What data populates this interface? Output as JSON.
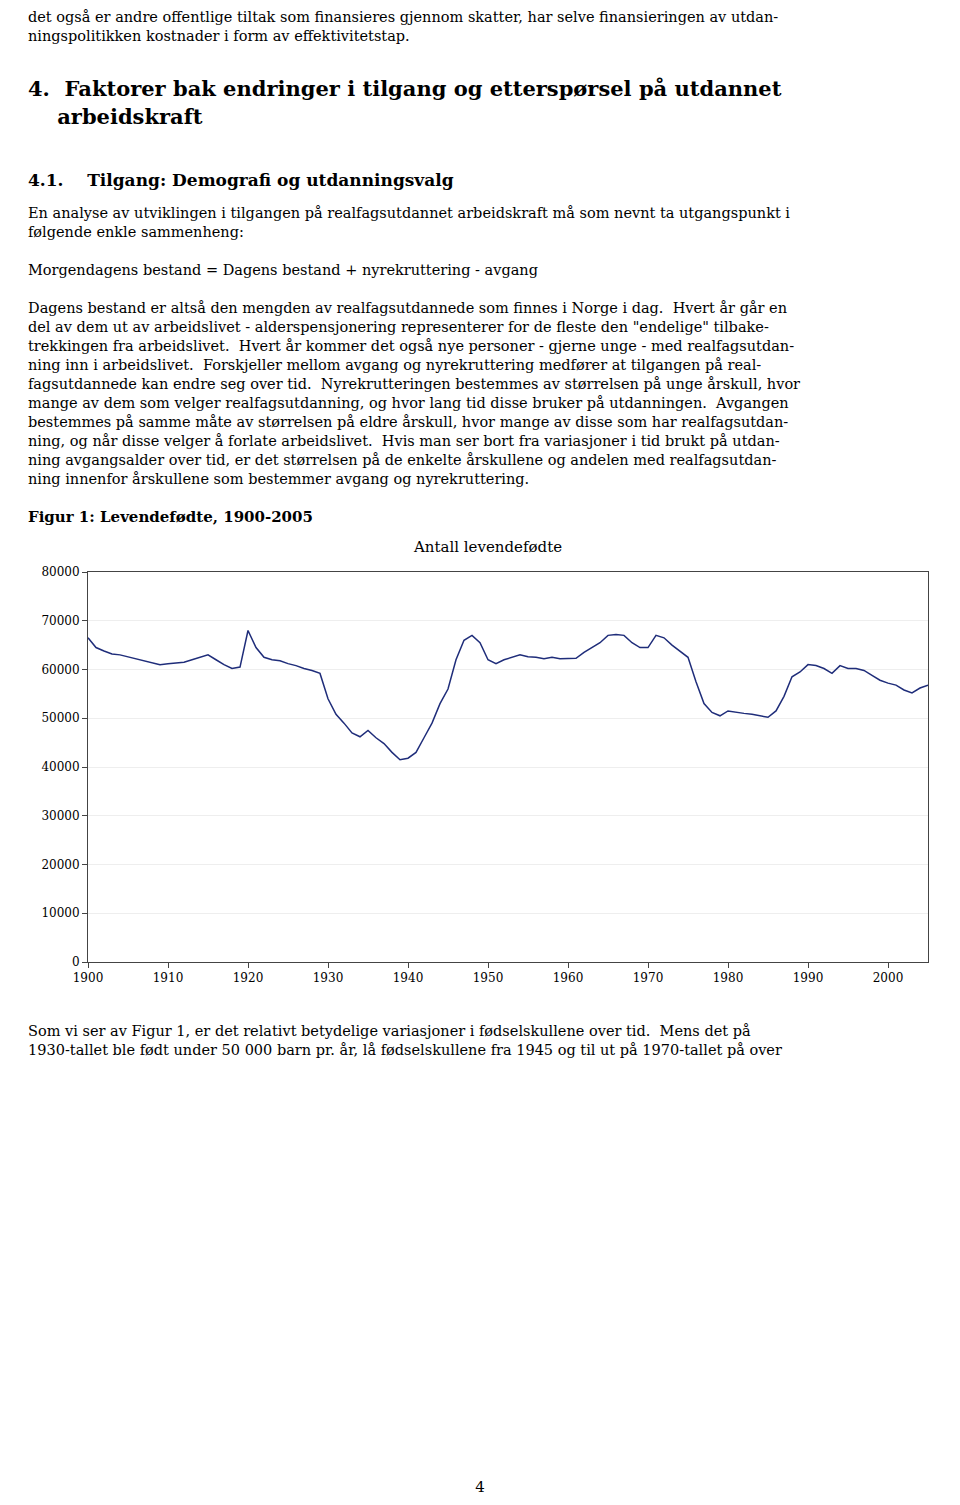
{
  "text_above": [
    {
      "lines": [
        "det også er andre offentlige tiltak som finansieres gjennom skatter, har selve finansieringen av utdan-",
        "ningspolitikken kostnader i form av effektivitetstap."
      ]
    },
    {
      "heading": [
        "4.  Faktorer bak endringer i tilgang og etterspørsel på utdannet",
        "    arbeidskraft"
      ]
    },
    {
      "subheading": [
        "4.1.    Tilgang: Demografi og utdanningsvalg"
      ]
    },
    {
      "lines": [
        "En analyse av utviklingen i tilgangen på realfagsutdannet arbeidskraft må som nevnt ta utgangspunkt i",
        "følgende enkle sammenheng:"
      ]
    },
    {
      "lines": [
        "Morgendagens bestand = Dagens bestand + nyrekruttering - avgang"
      ]
    },
    {
      "lines": [
        "Dagens bestand er altså den mengden av realfagsutdannede som finnes i Norge i dag.  Hvert år går en",
        "del av dem ut av arbeidslivet - alderspensjonering representerer for de fleste den \"endelige\" tilbake-",
        "trekkingen fra arbeidslivet.  Hvert år kommer det også nye personer - gjerne unge - med realfagsutdan-",
        "ning inn i arbeidslivet.  Forskjeller mellom avgang og nyrekruttering medfører at tilgangen på real-",
        "fagsutdannede kan endre seg over tid.  Nyrekrutteringen bestemmes av størrelsen på unge årskull, hvor",
        "mange av dem som velger realfagsutdanning, og hvor lang tid disse bruker på utdanningen.  Avgangen",
        "bestemmes på samme måte av størrelsen på eldre årskull, hvor mange av disse som har realfagsutdan-",
        "ning, og når disse velger å forlate arbeidslivet.  Hvis man ser bort fra variasjoner i tid brukt på utdan-",
        "ning avgangsalder over tid, er det størrelsen på de enkelte årskullene og andelen med realfagsutdan-",
        "ning innenfor årskullene som bestemmer avgang og nyrekruttering."
      ]
    }
  ],
  "chart_data": {
    "type": "line",
    "title": "Figur 1: Levendefødte, 1900-2005",
    "subtitle": "Antall levendefødte",
    "color": "#1f2d7a",
    "grid": "y",
    "x": [
      1900,
      1901,
      1902,
      1903,
      1904,
      1905,
      1906,
      1907,
      1908,
      1909,
      1910,
      1911,
      1912,
      1913,
      1914,
      1915,
      1916,
      1917,
      1918,
      1919,
      1920,
      1921,
      1922,
      1923,
      1924,
      1925,
      1926,
      1927,
      1928,
      1929,
      1930,
      1931,
      1932,
      1933,
      1934,
      1935,
      1936,
      1937,
      1938,
      1939,
      1940,
      1941,
      1942,
      1943,
      1944,
      1945,
      1946,
      1947,
      1948,
      1949,
      1950,
      1951,
      1952,
      1953,
      1954,
      1955,
      1956,
      1957,
      1958,
      1959,
      1960,
      1961,
      1962,
      1963,
      1964,
      1965,
      1966,
      1967,
      1968,
      1969,
      1970,
      1971,
      1972,
      1973,
      1974,
      1975,
      1976,
      1977,
      1978,
      1979,
      1980,
      1981,
      1982,
      1983,
      1984,
      1985,
      1986,
      1987,
      1988,
      1989,
      1990,
      1991,
      1992,
      1993,
      1994,
      1995,
      1996,
      1997,
      1998,
      1999,
      2000,
      2001,
      2002,
      2003,
      2004,
      2005
    ],
    "values": [
      66500,
      64500,
      63800,
      63200,
      63000,
      62600,
      62200,
      61800,
      61500,
      61000,
      61200,
      61300,
      61500,
      62000,
      62500,
      63000,
      62000,
      61000,
      60200,
      60500,
      68000,
      64500,
      62500,
      62000,
      61800,
      61200,
      60800,
      60200,
      59800,
      59200,
      54000,
      50800,
      49000,
      47000,
      46200,
      47500,
      46000,
      44800,
      43000,
      41500,
      41800,
      43000,
      46000,
      49000,
      53000,
      56000,
      62000,
      66000,
      67000,
      65500,
      62000,
      61200,
      62000,
      62500,
      63000,
      62600,
      62500,
      62200,
      62500,
      62200,
      62200,
      62300,
      63500,
      64500,
      65500,
      67000,
      67200,
      67000,
      65500,
      64500,
      64500,
      67000,
      66500,
      65000,
      63800,
      62500,
      57500,
      53000,
      51200,
      50500,
      51500,
      51200,
      51000,
      50800,
      50500,
      50200,
      51500,
      54500,
      58500,
      59500,
      61000,
      60800,
      60200,
      59200,
      60800,
      60200,
      60200,
      59800,
      58800,
      57800,
      57200,
      56800,
      55800,
      55200,
      56200,
      56800
    ],
    "xlim": [
      1900,
      2005
    ],
    "xticks": [
      1900,
      1910,
      1920,
      1930,
      1940,
      1950,
      1960,
      1970,
      1980,
      1990,
      2000
    ],
    "ylim": [
      0,
      80000
    ],
    "yticks": [
      0,
      10000,
      20000,
      30000,
      40000,
      50000,
      60000,
      70000,
      80000
    ]
  },
  "text_below": [
    {
      "lines": [
        "Som vi ser av Figur 1, er det relativt betydelige variasjoner i fødselskullene over tid.  Mens det på",
        "1930-tallet ble født under 50 000 barn pr. år, lå fødselskullene fra 1945 og til ut på 1970-tallet på over"
      ]
    }
  ],
  "page_number": "4"
}
